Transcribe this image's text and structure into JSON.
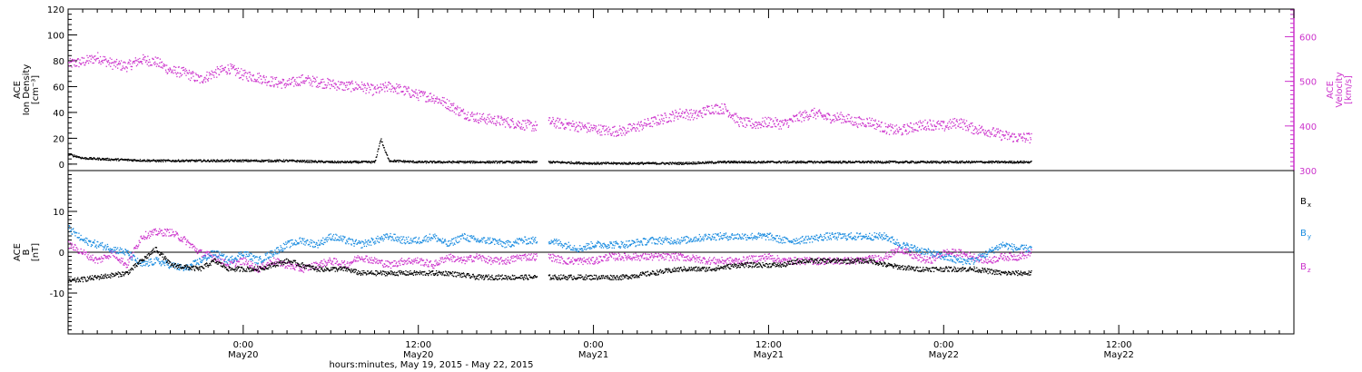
{
  "chart_data": [
    {
      "type": "scatter",
      "x_axis": {
        "label": "hours:minutes, May 19, 2015 - May 22, 2015",
        "range_hours": [
          0,
          84
        ],
        "ticks": [
          {
            "hour": 12,
            "time": "0:00",
            "date": "May20"
          },
          {
            "hour": 24,
            "time": "12:00",
            "date": "May20"
          },
          {
            "hour": 36,
            "time": "0:00",
            "date": "May21"
          },
          {
            "hour": 48,
            "time": "12:00",
            "date": "May21"
          },
          {
            "hour": 60,
            "time": "0:00",
            "date": "May22"
          },
          {
            "hour": 72,
            "time": "12:00",
            "date": "May22"
          }
        ]
      },
      "left_axis": {
        "label_lines": [
          "ACE",
          "Ion Density",
          "[cm⁻³]"
        ],
        "ylim": [
          -5,
          120
        ],
        "ticks": [
          0,
          20,
          40,
          60,
          80,
          100,
          120
        ]
      },
      "right_axis": {
        "label_lines": [
          "ACE",
          "Velocity",
          "[km/s]"
        ],
        "ylim": [
          300,
          662
        ],
        "ticks": [
          300,
          400,
          500,
          600
        ],
        "color": "#cc33cc"
      },
      "data_gap_hours": [
        32.1,
        32.9
      ],
      "series": [
        {
          "color": "#000000",
          "axis": "left",
          "points": [
            [
              0,
              8
            ],
            [
              1,
              5
            ],
            [
              3,
              4
            ],
            [
              6,
              3
            ],
            [
              9,
              3
            ],
            [
              12,
              3
            ],
            [
              15,
              3
            ],
            [
              18,
              2
            ],
            [
              20,
              2
            ],
            [
              21,
              2
            ],
            [
              21.4,
              20
            ],
            [
              21.7,
              10
            ],
            [
              22,
              3
            ],
            [
              24,
              2
            ],
            [
              27,
              2
            ],
            [
              30,
              2
            ],
            [
              32,
              2
            ],
            [
              33,
              2
            ],
            [
              36,
              1
            ],
            [
              39,
              1
            ],
            [
              42,
              1
            ],
            [
              45,
              2
            ],
            [
              48,
              2
            ],
            [
              51,
              2
            ],
            [
              54,
              2
            ],
            [
              57,
              2
            ],
            [
              60,
              2
            ],
            [
              63,
              2
            ],
            [
              66,
              2
            ]
          ]
        },
        {
          "color": "#cc33cc",
          "axis": "right",
          "points": [
            [
              0,
              540
            ],
            [
              1,
              545
            ],
            [
              2,
              555
            ],
            [
              3,
              540
            ],
            [
              4,
              535
            ],
            [
              5,
              550
            ],
            [
              6,
              545
            ],
            [
              7,
              525
            ],
            [
              8,
              520
            ],
            [
              9,
              505
            ],
            [
              10,
              520
            ],
            [
              11,
              530
            ],
            [
              12,
              515
            ],
            [
              13,
              510
            ],
            [
              14,
              500
            ],
            [
              15,
              495
            ],
            [
              16,
              505
            ],
            [
              17,
              500
            ],
            [
              18,
              495
            ],
            [
              19,
              490
            ],
            [
              20,
              490
            ],
            [
              21,
              480
            ],
            [
              22,
              490
            ],
            [
              23,
              480
            ],
            [
              24,
              470
            ],
            [
              25,
              465
            ],
            [
              26,
              450
            ],
            [
              27,
              430
            ],
            [
              28,
              420
            ],
            [
              29,
              415
            ],
            [
              30,
              410
            ],
            [
              31,
              405
            ],
            [
              32,
              400
            ],
            [
              33,
              410
            ],
            [
              34,
              405
            ],
            [
              35,
              400
            ],
            [
              36,
              395
            ],
            [
              37,
              390
            ],
            [
              38,
              390
            ],
            [
              39,
              400
            ],
            [
              40,
              410
            ],
            [
              41,
              420
            ],
            [
              42,
              430
            ],
            [
              43,
              425
            ],
            [
              44,
              440
            ],
            [
              45,
              440
            ],
            [
              46,
              410
            ],
            [
              47,
              405
            ],
            [
              48,
              410
            ],
            [
              49,
              405
            ],
            [
              50,
              420
            ],
            [
              51,
              430
            ],
            [
              52,
              420
            ],
            [
              53,
              420
            ],
            [
              54,
              410
            ],
            [
              55,
              410
            ],
            [
              56,
              395
            ],
            [
              57,
              390
            ],
            [
              58,
              400
            ],
            [
              59,
              405
            ],
            [
              60,
              400
            ],
            [
              61,
              410
            ],
            [
              62,
              395
            ],
            [
              63,
              390
            ],
            [
              64,
              380
            ],
            [
              65,
              375
            ],
            [
              66,
              375
            ]
          ]
        }
      ]
    },
    {
      "type": "scatter",
      "x_axis_shared": true,
      "left_axis": {
        "label_lines": [
          "ACE",
          "B",
          "[nT]"
        ],
        "ylim": [
          -20,
          20
        ],
        "ticks": [
          -10,
          0,
          10
        ]
      },
      "zero_line": true,
      "legend": {
        "placement": "right",
        "entries": [
          {
            "name": "B",
            "subscript": "x",
            "color": "#000000"
          },
          {
            "name": "B",
            "subscript": "y",
            "color": "#1a8ce0"
          },
          {
            "name": "B",
            "subscript": "z",
            "color": "#cc33cc"
          }
        ]
      },
      "series": [
        {
          "name": "Bx",
          "color": "#000000",
          "points": [
            [
              0,
              -7
            ],
            [
              2,
              -6
            ],
            [
              4,
              -5
            ],
            [
              5,
              -2
            ],
            [
              6,
              1
            ],
            [
              7,
              -3
            ],
            [
              9,
              -4
            ],
            [
              10,
              -2
            ],
            [
              11,
              -4
            ],
            [
              13,
              -4
            ],
            [
              14,
              -3
            ],
            [
              15,
              -2
            ],
            [
              16,
              -3
            ],
            [
              17,
              -4
            ],
            [
              19,
              -4
            ],
            [
              20,
              -5
            ],
            [
              22,
              -5
            ],
            [
              24,
              -5
            ],
            [
              26,
              -5
            ],
            [
              28,
              -6
            ],
            [
              30,
              -6
            ],
            [
              31,
              -6
            ],
            [
              33,
              -6
            ],
            [
              35,
              -6
            ],
            [
              36,
              -6
            ],
            [
              38,
              -6
            ],
            [
              40,
              -5
            ],
            [
              42,
              -4
            ],
            [
              44,
              -4
            ],
            [
              46,
              -3
            ],
            [
              48,
              -3
            ],
            [
              49,
              -3
            ],
            [
              50,
              -2
            ],
            [
              52,
              -2
            ],
            [
              54,
              -2
            ],
            [
              55,
              -2
            ],
            [
              56,
              -3
            ],
            [
              58,
              -4
            ],
            [
              60,
              -4
            ],
            [
              62,
              -4
            ],
            [
              64,
              -5
            ],
            [
              66,
              -5
            ]
          ]
        },
        {
          "name": "By",
          "color": "#1a8ce0",
          "points": [
            [
              0,
              6
            ],
            [
              1,
              3
            ],
            [
              2,
              2
            ],
            [
              3,
              1
            ],
            [
              4,
              0
            ],
            [
              5,
              -3
            ],
            [
              6,
              -2
            ],
            [
              7,
              -3
            ],
            [
              8,
              -4
            ],
            [
              9,
              -2
            ],
            [
              10,
              0
            ],
            [
              11,
              -2
            ],
            [
              12,
              0
            ],
            [
              13,
              -2
            ],
            [
              14,
              0
            ],
            [
              15,
              2
            ],
            [
              16,
              3
            ],
            [
              17,
              2
            ],
            [
              18,
              4
            ],
            [
              19,
              3
            ],
            [
              20,
              2
            ],
            [
              21,
              3
            ],
            [
              22,
              4
            ],
            [
              23,
              3
            ],
            [
              24,
              3
            ],
            [
              25,
              4
            ],
            [
              26,
              2
            ],
            [
              27,
              4
            ],
            [
              28,
              3
            ],
            [
              29,
              3
            ],
            [
              30,
              2
            ],
            [
              31,
              3
            ],
            [
              33,
              3
            ],
            [
              34,
              2
            ],
            [
              35,
              1
            ],
            [
              36,
              2
            ],
            [
              37,
              2
            ],
            [
              38,
              2
            ],
            [
              40,
              3
            ],
            [
              42,
              3
            ],
            [
              44,
              4
            ],
            [
              46,
              4
            ],
            [
              48,
              4
            ],
            [
              49,
              3
            ],
            [
              50,
              3
            ],
            [
              52,
              4
            ],
            [
              54,
              4
            ],
            [
              56,
              4
            ],
            [
              57,
              2
            ],
            [
              58,
              1
            ],
            [
              59,
              0
            ],
            [
              60,
              -1
            ],
            [
              61,
              -2
            ],
            [
              62,
              -2
            ],
            [
              63,
              0
            ],
            [
              64,
              2
            ],
            [
              65,
              1
            ],
            [
              66,
              1
            ]
          ]
        },
        {
          "name": "Bz",
          "color": "#cc33cc",
          "points": [
            [
              0,
              2
            ],
            [
              1,
              0
            ],
            [
              2,
              -2
            ],
            [
              3,
              0
            ],
            [
              4,
              -3
            ],
            [
              5,
              4
            ],
            [
              6,
              5
            ],
            [
              7,
              5
            ],
            [
              8,
              3
            ],
            [
              9,
              0
            ],
            [
              10,
              -1
            ],
            [
              11,
              -3
            ],
            [
              12,
              -2
            ],
            [
              13,
              -4
            ],
            [
              14,
              -2
            ],
            [
              15,
              -3
            ],
            [
              16,
              -4
            ],
            [
              17,
              -3
            ],
            [
              18,
              -2
            ],
            [
              19,
              -3
            ],
            [
              20,
              -1
            ],
            [
              21,
              -2
            ],
            [
              22,
              -3
            ],
            [
              23,
              -2
            ],
            [
              24,
              -2
            ],
            [
              25,
              -3
            ],
            [
              26,
              -1
            ],
            [
              27,
              -2
            ],
            [
              28,
              -1
            ],
            [
              29,
              -2
            ],
            [
              30,
              -2
            ],
            [
              31,
              -1
            ],
            [
              33,
              -1
            ],
            [
              34,
              -2
            ],
            [
              35,
              -2
            ],
            [
              36,
              -2
            ],
            [
              37,
              -1
            ],
            [
              38,
              -1
            ],
            [
              40,
              -1
            ],
            [
              42,
              -1
            ],
            [
              44,
              -2
            ],
            [
              46,
              -2
            ],
            [
              48,
              -1
            ],
            [
              49,
              -2
            ],
            [
              50,
              -2
            ],
            [
              52,
              -2
            ],
            [
              54,
              -2
            ],
            [
              56,
              -1
            ],
            [
              57,
              1
            ],
            [
              58,
              -1
            ],
            [
              59,
              -2
            ],
            [
              60,
              0
            ],
            [
              61,
              0
            ],
            [
              62,
              -1
            ],
            [
              63,
              -2
            ],
            [
              64,
              -1
            ],
            [
              65,
              -1
            ],
            [
              66,
              0
            ]
          ]
        }
      ]
    }
  ]
}
